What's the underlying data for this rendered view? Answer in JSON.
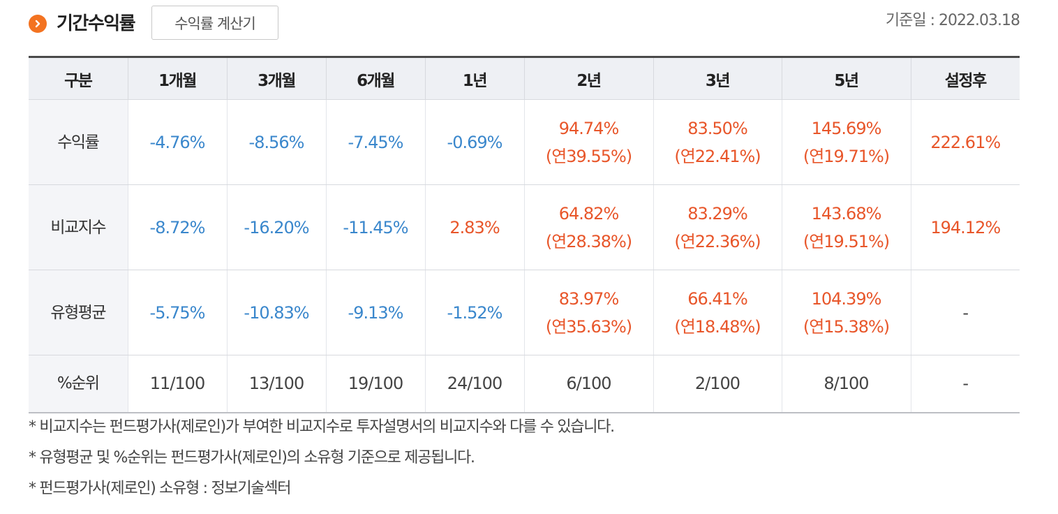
{
  "header": {
    "title": "기간수익률",
    "calc_button": "수익률 계산기",
    "base_date": "기준일 : 2022.03.18"
  },
  "colors": {
    "accent_orange": "#f37321",
    "negative": "#3a87cc",
    "positive": "#e8562a"
  },
  "table": {
    "headers": [
      "구분",
      "1개월",
      "3개월",
      "6개월",
      "1년",
      "2년",
      "3년",
      "5년",
      "설정후"
    ],
    "rows": [
      {
        "label": "수익률",
        "cells": [
          {
            "v": "-4.76%",
            "c": "neg"
          },
          {
            "v": "-8.56%",
            "c": "neg"
          },
          {
            "v": "-7.45%",
            "c": "neg"
          },
          {
            "v": "-0.69%",
            "c": "neg"
          },
          {
            "v": "94.74%",
            "sub": "(연39.55%)",
            "c": "pos"
          },
          {
            "v": "83.50%",
            "sub": "(연22.41%)",
            "c": "pos"
          },
          {
            "v": "145.69%",
            "sub": "(연19.71%)",
            "c": "pos"
          },
          {
            "v": "222.61%",
            "c": "pos"
          }
        ]
      },
      {
        "label": "비교지수",
        "cells": [
          {
            "v": "-8.72%",
            "c": "neg"
          },
          {
            "v": "-16.20%",
            "c": "neg"
          },
          {
            "v": "-11.45%",
            "c": "neg"
          },
          {
            "v": "2.83%",
            "c": "pos"
          },
          {
            "v": "64.82%",
            "sub": "(연28.38%)",
            "c": "pos"
          },
          {
            "v": "83.29%",
            "sub": "(연22.36%)",
            "c": "pos"
          },
          {
            "v": "143.68%",
            "sub": "(연19.51%)",
            "c": "pos"
          },
          {
            "v": "194.12%",
            "c": "pos"
          }
        ]
      },
      {
        "label": "유형평균",
        "cells": [
          {
            "v": "-5.75%",
            "c": "neg"
          },
          {
            "v": "-10.83%",
            "c": "neg"
          },
          {
            "v": "-9.13%",
            "c": "neg"
          },
          {
            "v": "-1.52%",
            "c": "neg"
          },
          {
            "v": "83.97%",
            "sub": "(연35.63%)",
            "c": "pos"
          },
          {
            "v": "66.41%",
            "sub": "(연18.48%)",
            "c": "pos"
          },
          {
            "v": "104.39%",
            "sub": "(연15.38%)",
            "c": "pos"
          },
          {
            "v": "-",
            "c": "neu"
          }
        ]
      },
      {
        "label": "%순위",
        "rank": true,
        "cells": [
          {
            "v": "11/100",
            "c": "neu"
          },
          {
            "v": "13/100",
            "c": "neu"
          },
          {
            "v": "19/100",
            "c": "neu"
          },
          {
            "v": "24/100",
            "c": "neu"
          },
          {
            "v": "6/100",
            "c": "neu"
          },
          {
            "v": "2/100",
            "c": "neu"
          },
          {
            "v": "8/100",
            "c": "neu"
          },
          {
            "v": "-",
            "c": "neu"
          }
        ]
      }
    ]
  },
  "notes": [
    "* 비교지수는 펀드평가사(제로인)가 부여한 비교지수로 투자설명서의 비교지수와 다를 수 있습니다.",
    "* 유형평균 및 %순위는 펀드평가사(제로인)의 소유형 기준으로 제공됩니다.",
    "* 펀드평가사(제로인) 소유형 : 정보기술섹터"
  ]
}
